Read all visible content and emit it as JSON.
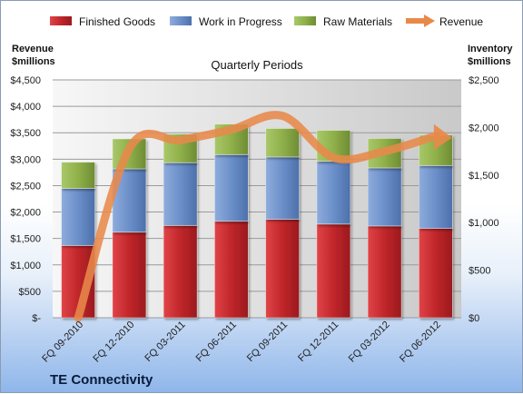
{
  "brand": "TE Connectivity",
  "chart_data": {
    "type": "bar",
    "title": "Quarterly Periods",
    "categories": [
      "FQ 09-2010",
      "FQ 12-2010",
      "FQ 03-2011",
      "FQ 06-2011",
      "FQ 09-2011",
      "FQ 12-2011",
      "FQ 03-2012",
      "FQ 06-2012"
    ],
    "stacked": true,
    "series": [
      {
        "name": "Finished Goods",
        "axis": "right",
        "color": "#c0262a",
        "values": [
          760,
          900,
          970,
          1015,
          1035,
          985,
          965,
          940
        ]
      },
      {
        "name": "Work in Progress",
        "axis": "right",
        "color": "#6b8fc9",
        "values": [
          600,
          665,
          660,
          700,
          655,
          660,
          610,
          660
        ]
      },
      {
        "name": "Raw Materials",
        "axis": "right",
        "color": "#8fb04a",
        "values": [
          275,
          315,
          300,
          320,
          300,
          325,
          310,
          320
        ]
      }
    ],
    "line_series": {
      "name": "Revenue",
      "axis": "left",
      "color": "#e8894a",
      "values": [
        0,
        3200,
        3360,
        3560,
        3820,
        3030,
        3150,
        3440
      ]
    },
    "left_axis": {
      "title_line1": "Revenue",
      "title_line2": "$millions",
      "ylim": [
        0,
        4500
      ],
      "ticks": [
        "$-",
        "$500",
        "$1,000",
        "$1,500",
        "$2,000",
        "$2,500",
        "$3,000",
        "$3,500",
        "$4,000",
        "$4,500"
      ]
    },
    "right_axis": {
      "title_line1": "Inventory",
      "title_line2": "$millions",
      "ylim": [
        0,
        2500
      ],
      "ticks": [
        "$0",
        "$500",
        "$1,000",
        "$1,500",
        "$2,000",
        "$2,500"
      ]
    },
    "legend_position": "top",
    "grid": true
  }
}
